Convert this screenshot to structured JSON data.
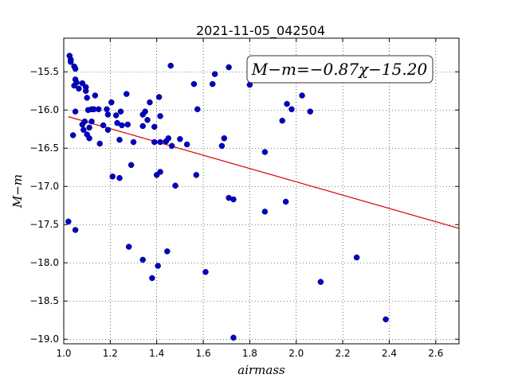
{
  "chart_data": {
    "type": "scatter",
    "title": "2021-11-05_042504",
    "xlabel": "airmass",
    "ylabel": "M−m",
    "xlim": [
      1.0,
      2.7
    ],
    "ylim": [
      -19.06,
      -15.06
    ],
    "y_inverted": false,
    "grid": true,
    "xticks": [
      1.0,
      1.2,
      1.4,
      1.6,
      1.8,
      2.0,
      2.2,
      2.4,
      2.6
    ],
    "xtick_labels": [
      "1.0",
      "1.2",
      "1.4",
      "1.6",
      "1.8",
      "2.0",
      "2.2",
      "2.4",
      "2.6"
    ],
    "yticks": [
      -15.5,
      -16.0,
      -16.5,
      -17.0,
      -17.5,
      -18.0,
      -18.5,
      -19.0
    ],
    "ytick_labels": [
      "−15.5",
      "−16.0",
      "−16.5",
      "−17.0",
      "−17.5",
      "−18.0",
      "−18.5",
      "−19.0"
    ],
    "annotation": "M−m=−0.87χ−15.20",
    "colors": {
      "points": "#0000cc",
      "fit": "#dd0000"
    },
    "fit": {
      "slope": -0.87,
      "intercept": -15.2,
      "x_range": [
        1.02,
        2.7
      ]
    },
    "points": [
      [
        1.02,
        -17.46
      ],
      [
        1.025,
        -15.29
      ],
      [
        1.03,
        -15.34
      ],
      [
        1.03,
        -15.37
      ],
      [
        1.04,
        -16.33
      ],
      [
        1.045,
        -15.43
      ],
      [
        1.05,
        -15.46
      ],
      [
        1.045,
        -15.68
      ],
      [
        1.05,
        -15.6
      ],
      [
        1.055,
        -15.64
      ],
      [
        1.065,
        -15.72
      ],
      [
        1.05,
        -16.02
      ],
      [
        1.05,
        -17.57
      ],
      [
        1.08,
        -15.65
      ],
      [
        1.08,
        -16.19
      ],
      [
        1.085,
        -16.26
      ],
      [
        1.09,
        -16.15
      ],
      [
        1.095,
        -15.7
      ],
      [
        1.095,
        -15.75
      ],
      [
        1.1,
        -15.84
      ],
      [
        1.1,
        -16.32
      ],
      [
        1.105,
        -16.0
      ],
      [
        1.11,
        -16.37
      ],
      [
        1.11,
        -16.23
      ],
      [
        1.12,
        -15.99
      ],
      [
        1.12,
        -16.15
      ],
      [
        1.13,
        -15.99
      ],
      [
        1.135,
        -15.81
      ],
      [
        1.15,
        -15.99
      ],
      [
        1.155,
        -16.44
      ],
      [
        1.17,
        -16.2
      ],
      [
        1.185,
        -15.99
      ],
      [
        1.19,
        -16.06
      ],
      [
        1.19,
        -16.26
      ],
      [
        1.205,
        -15.9
      ],
      [
        1.21,
        -16.87
      ],
      [
        1.225,
        -16.07
      ],
      [
        1.23,
        -16.17
      ],
      [
        1.24,
        -16.39
      ],
      [
        1.24,
        -16.89
      ],
      [
        1.245,
        -16.02
      ],
      [
        1.25,
        -16.2
      ],
      [
        1.27,
        -15.79
      ],
      [
        1.275,
        -16.19
      ],
      [
        1.28,
        -17.79
      ],
      [
        1.29,
        -16.72
      ],
      [
        1.3,
        -16.42
      ],
      [
        1.34,
        -16.06
      ],
      [
        1.34,
        -16.21
      ],
      [
        1.34,
        -17.96
      ],
      [
        1.35,
        -16.02
      ],
      [
        1.36,
        -16.13
      ],
      [
        1.37,
        -15.9
      ],
      [
        1.38,
        -18.2
      ],
      [
        1.39,
        -16.22
      ],
      [
        1.39,
        -16.42
      ],
      [
        1.4,
        -16.85
      ],
      [
        1.405,
        -18.04
      ],
      [
        1.41,
        -15.83
      ],
      [
        1.415,
        -16.08
      ],
      [
        1.415,
        -16.42
      ],
      [
        1.415,
        -16.81
      ],
      [
        1.44,
        -16.41
      ],
      [
        1.445,
        -17.85
      ],
      [
        1.45,
        -16.37
      ],
      [
        1.46,
        -15.42
      ],
      [
        1.465,
        -16.47
      ],
      [
        1.48,
        -16.99
      ],
      [
        1.5,
        -16.38
      ],
      [
        1.53,
        -16.45
      ],
      [
        1.56,
        -15.66
      ],
      [
        1.57,
        -16.85
      ],
      [
        1.575,
        -15.99
      ],
      [
        1.61,
        -18.12
      ],
      [
        1.64,
        -15.66
      ],
      [
        1.65,
        -15.53
      ],
      [
        1.68,
        -16.47
      ],
      [
        1.69,
        -16.37
      ],
      [
        1.71,
        -17.15
      ],
      [
        1.71,
        -15.44
      ],
      [
        1.73,
        -17.17
      ],
      [
        1.73,
        -18.98
      ],
      [
        1.8,
        -15.67
      ],
      [
        1.865,
        -16.55
      ],
      [
        1.865,
        -17.33
      ],
      [
        1.94,
        -16.14
      ],
      [
        1.955,
        -17.2
      ],
      [
        1.96,
        -15.92
      ],
      [
        1.98,
        -15.99
      ],
      [
        2.025,
        -15.81
      ],
      [
        2.06,
        -16.02
      ],
      [
        2.105,
        -18.25
      ],
      [
        2.26,
        -17.93
      ],
      [
        2.385,
        -18.74
      ]
    ]
  }
}
